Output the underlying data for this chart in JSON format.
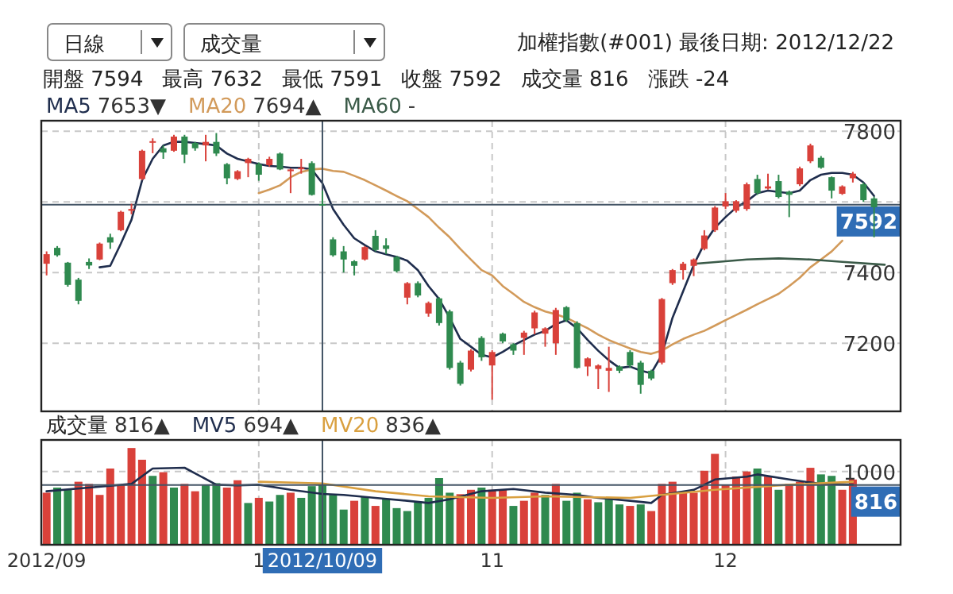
{
  "chart_data": [
    {
      "type": "candlestick",
      "title": "加權指數(#001)  最後日期: 2012/12/22",
      "categories": [
        "2012/09",
        null,
        null,
        null,
        null,
        null,
        null,
        null,
        null,
        null,
        null,
        null,
        null,
        null,
        null,
        null,
        null,
        null,
        null,
        null,
        "1",
        null,
        null,
        null,
        null,
        null,
        "2012/10/09",
        null,
        null,
        null,
        null,
        null,
        null,
        null,
        null,
        null,
        null,
        null,
        null,
        null,
        null,
        null,
        "11",
        null,
        null,
        null,
        null,
        null,
        null,
        null,
        null,
        null,
        null,
        null,
        null,
        null,
        null,
        null,
        null,
        null,
        null,
        null,
        null,
        null,
        "12",
        null,
        null,
        null,
        null,
        null,
        null,
        null,
        null,
        null,
        null,
        null,
        null,
        null,
        null,
        null
      ],
      "ohlc": [
        [
          7425,
          7460,
          7392,
          7452
        ],
        [
          7470,
          7475,
          7445,
          7449
        ],
        [
          7428,
          7430,
          7360,
          7365
        ],
        [
          7380,
          7385,
          7310,
          7320
        ],
        [
          7430,
          7440,
          7410,
          7420
        ],
        [
          7437,
          7485,
          7435,
          7482
        ],
        [
          7500,
          7510,
          7467,
          7485
        ],
        [
          7520,
          7575,
          7517,
          7572
        ],
        [
          7575,
          7595,
          7565,
          7580
        ],
        [
          7665,
          7748,
          7662,
          7745
        ],
        [
          7770,
          7780,
          7738,
          7772
        ],
        [
          7752,
          7760,
          7722,
          7740
        ],
        [
          7745,
          7790,
          7742,
          7785
        ],
        [
          7785,
          7790,
          7710,
          7734
        ],
        [
          7767,
          7770,
          7745,
          7752
        ],
        [
          7760,
          7790,
          7715,
          7770
        ],
        [
          7770,
          7795,
          7730,
          7737
        ],
        [
          7707,
          7710,
          7650,
          7667
        ],
        [
          7665,
          7690,
          7662,
          7687
        ],
        [
          7710,
          7725,
          7670,
          7722
        ],
        [
          7707,
          7712,
          7660,
          7677
        ],
        [
          7704,
          7728,
          7700,
          7722
        ],
        [
          7737,
          7740,
          7690,
          7692
        ],
        [
          7687,
          7695,
          7625,
          7692
        ],
        [
          7694,
          7722,
          7680,
          7697
        ],
        [
          7710,
          7715,
          7618,
          7620
        ],
        [
          7594,
          7632,
          7591,
          7592
        ],
        [
          7494,
          7500,
          7445,
          7449
        ],
        [
          7460,
          7475,
          7400,
          7437
        ],
        [
          7432,
          7435,
          7392,
          7419
        ],
        [
          7437,
          7475,
          7434,
          7472
        ],
        [
          7504,
          7520,
          7460,
          7464
        ],
        [
          7477,
          7497,
          7452,
          7467
        ],
        [
          7444,
          7447,
          7400,
          7404
        ],
        [
          7329,
          7373,
          7310,
          7370
        ],
        [
          7370,
          7375,
          7330,
          7335
        ],
        [
          7284,
          7318,
          7275,
          7314
        ],
        [
          7327,
          7330,
          7250,
          7257
        ],
        [
          7290,
          7295,
          7125,
          7130
        ],
        [
          7145,
          7150,
          7080,
          7085
        ],
        [
          7125,
          7183,
          7120,
          7179
        ],
        [
          7215,
          7220,
          7150,
          7160
        ],
        [
          7137,
          7180,
          7040,
          7175
        ],
        [
          7227,
          7230,
          7200,
          7205
        ],
        [
          7197,
          7200,
          7167,
          7179
        ],
        [
          7215,
          7235,
          7167,
          7230
        ],
        [
          7242,
          7292,
          7225,
          7287
        ],
        [
          7227,
          7245,
          7190,
          7242
        ],
        [
          7200,
          7300,
          7167,
          7294
        ],
        [
          7302,
          7305,
          7260,
          7265
        ],
        [
          7257,
          7262,
          7128,
          7130
        ],
        [
          7134,
          7160,
          7107,
          7157
        ],
        [
          7127,
          7140,
          7070,
          7137
        ],
        [
          7122,
          7190,
          7062,
          7130
        ],
        [
          7134,
          7137,
          7115,
          7122
        ],
        [
          7175,
          7180,
          7130,
          7137
        ],
        [
          7145,
          7150,
          7057,
          7082
        ],
        [
          7122,
          7125,
          7095,
          7100
        ],
        [
          7145,
          7328,
          7140,
          7325
        ],
        [
          7370,
          7410,
          7365,
          7407
        ],
        [
          7407,
          7430,
          7380,
          7425
        ],
        [
          7419,
          7440,
          7390,
          7437
        ],
        [
          7467,
          7520,
          7463,
          7505
        ],
        [
          7520,
          7588,
          7515,
          7584
        ],
        [
          7587,
          7625,
          7580,
          7602
        ],
        [
          7575,
          7605,
          7570,
          7602
        ],
        [
          7580,
          7655,
          7575,
          7650
        ],
        [
          7665,
          7677,
          7620,
          7625
        ],
        [
          7638,
          7680,
          7635,
          7644
        ],
        [
          7659,
          7677,
          7610,
          7614
        ],
        [
          7629,
          7632,
          7557,
          7620
        ],
        [
          7650,
          7700,
          7645,
          7695
        ],
        [
          7715,
          7765,
          7710,
          7760
        ],
        [
          7725,
          7730,
          7694,
          7697
        ],
        [
          7670,
          7672,
          7610,
          7632
        ],
        [
          7623,
          7647,
          7620,
          7644
        ],
        [
          7667,
          7685,
          7655,
          7680
        ],
        [
          7650,
          7655,
          7600,
          7605
        ],
        [
          7610,
          7615,
          7500,
          7585
        ],
        null
      ],
      "colors": [
        "#d9413a",
        "#2f8a4f",
        "#2f8a4f",
        "#2f8a4f",
        "#2f8a4f",
        "#d9413a",
        "#2f8a4f",
        "#d9413a",
        "#d9413a",
        "#d9413a",
        "#d9413a",
        "#2f8a4f",
        "#d9413a",
        "#2f8a4f",
        "#2f8a4f",
        "#d9413a",
        "#2f8a4f",
        "#2f8a4f",
        "#d9413a",
        "#d9413a",
        "#2f8a4f",
        "#d9413a",
        "#2f8a4f",
        "#d9413a",
        "#d9413a",
        "#2f8a4f",
        "#2f8a4f",
        "#2f8a4f",
        "#2f8a4f",
        "#2f8a4f",
        "#d9413a",
        "#2f8a4f",
        "#2f8a4f",
        "#2f8a4f",
        "#d9413a",
        "#2f8a4f",
        "#d9413a",
        "#2f8a4f",
        "#2f8a4f",
        "#2f8a4f",
        "#d9413a",
        "#2f8a4f",
        "#d9413a",
        "#2f8a4f",
        "#2f8a4f",
        "#d9413a",
        "#d9413a",
        "#d9413a",
        "#d9413a",
        "#2f8a4f",
        "#2f8a4f",
        "#d9413a",
        "#d9413a",
        "#d9413a",
        "#2f8a4f",
        "#2f8a4f",
        "#2f8a4f",
        "#2f8a4f",
        "#d9413a",
        "#d9413a",
        "#d9413a",
        "#d9413a",
        "#d9413a",
        "#d9413a",
        "#d9413a",
        "#d9413a",
        "#d9413a",
        "#2f8a4f",
        "#d9413a",
        "#2f8a4f",
        "#2f8a4f",
        "#d9413a",
        "#d9413a",
        "#2f8a4f",
        "#2f8a4f",
        "#d9413a",
        "#d9413a",
        "#2f8a4f",
        "#2f8a4f",
        null
      ],
      "series": [
        {
          "name": "MA5",
          "type": "line",
          "color": "#1f2d4d",
          "values": [
            null,
            null,
            null,
            null,
            null,
            7415,
            7419,
            7482,
            7550,
            7662,
            7722,
            7760,
            7770,
            7770,
            7767,
            7764,
            7760,
            7737,
            7722,
            7715,
            7707,
            7702,
            7700,
            7697,
            7697,
            7692,
            7653,
            7580,
            7535,
            7497,
            7478,
            7460,
            7452,
            7444,
            7434,
            7407,
            7362,
            7325,
            7272,
            7212,
            7190,
            7167,
            7160,
            7175,
            7194,
            7209,
            7224,
            7235,
            7254,
            7265,
            7242,
            7209,
            7179,
            7152,
            7130,
            7134,
            7122,
            7115,
            7167,
            7272,
            7347,
            7422,
            7482,
            7527,
            7557,
            7584,
            7602,
            7625,
            7632,
            7628,
            7625,
            7632,
            7662,
            7677,
            7682,
            7682,
            7677,
            7655,
            7617,
            null
          ]
        },
        {
          "name": "MA20",
          "type": "line",
          "color": "#d29a5a",
          "values": [
            null,
            null,
            null,
            null,
            null,
            null,
            null,
            null,
            null,
            null,
            null,
            null,
            null,
            null,
            null,
            null,
            null,
            null,
            null,
            null,
            7625,
            7635,
            7647,
            7670,
            7685,
            7692,
            7694,
            7688,
            7685,
            7674,
            7662,
            7647,
            7632,
            7617,
            7602,
            7580,
            7557,
            7527,
            7500,
            7467,
            7437,
            7407,
            7392,
            7362,
            7340,
            7317,
            7302,
            7290,
            7282,
            7272,
            7257,
            7242,
            7224,
            7209,
            7197,
            7185,
            7175,
            7170,
            7179,
            7197,
            7212,
            7224,
            7235,
            7250,
            7265,
            7280,
            7295,
            7310,
            7325,
            7340,
            7362,
            7385,
            7415,
            7437,
            7460,
            7490,
            null,
            null,
            null,
            null
          ]
        },
        {
          "name": "MA60",
          "type": "line",
          "color": "#3a5a48",
          "values": [
            null,
            null,
            null,
            null,
            null,
            null,
            null,
            null,
            null,
            null,
            null,
            null,
            null,
            null,
            null,
            null,
            null,
            null,
            null,
            null,
            null,
            null,
            null,
            null,
            null,
            null,
            null,
            null,
            null,
            null,
            null,
            null,
            null,
            null,
            null,
            null,
            null,
            null,
            null,
            null,
            null,
            null,
            null,
            null,
            null,
            null,
            null,
            null,
            null,
            null,
            null,
            null,
            null,
            null,
            null,
            null,
            null,
            null,
            null,
            null,
            null,
            7425,
            null,
            null,
            7432,
            null,
            7437,
            null,
            null,
            7440,
            null,
            null,
            7437,
            null,
            null,
            7430,
            null,
            null,
            null,
            7422
          ]
        }
      ],
      "ylim": [
        7007,
        7830
      ],
      "yticks": [
        7200,
        7400,
        {
          "value": 7600,
          "label": null
        },
        7800
      ],
      "grid": true,
      "tick_labels": "y",
      "legend": "top left",
      "ref_lines": [
        {
          "axis": "y",
          "value": 7592,
          "label": "7592",
          "color": "#445566"
        },
        {
          "axis": "x",
          "value": "2012/10/09",
          "color": "#445566"
        }
      ],
      "annotations": [
        "日線",
        "成交量",
        "開盤 7594",
        "最高 7632",
        "最低 7591",
        "收盤 7592",
        "成交量 816",
        "漲跌 -24",
        "7653▼",
        "7694▲",
        "-"
      ]
    },
    {
      "type": "bar",
      "categories": [
        "2012/09",
        null,
        null,
        null,
        null,
        null,
        null,
        null,
        null,
        null,
        null,
        null,
        null,
        null,
        null,
        null,
        null,
        null,
        null,
        null,
        "1",
        null,
        null,
        null,
        null,
        null,
        "2012/10/09",
        null,
        null,
        null,
        null,
        null,
        null,
        null,
        null,
        null,
        null,
        null,
        null,
        null,
        null,
        null,
        "11",
        null,
        null,
        null,
        null,
        null,
        null,
        null,
        null,
        null,
        null,
        null,
        null,
        null,
        null,
        null,
        null,
        null,
        null,
        null,
        null,
        null,
        "12",
        null,
        null,
        null,
        null,
        null,
        null,
        null,
        null,
        null,
        null,
        null,
        null,
        null,
        null,
        null
      ],
      "series": [
        {
          "name": "成交量",
          "values": [
            710,
            780,
            750,
            860,
            830,
            680,
            1040,
            820,
            1320,
            1160,
            940,
            990,
            780,
            830,
            730,
            820,
            840,
            780,
            880,
            570,
            640,
            590,
            680,
            710,
            640,
            800,
            816,
            680,
            480,
            600,
            660,
            530,
            620,
            500,
            460,
            580,
            640,
            910,
            710,
            690,
            750,
            780,
            750,
            750,
            530,
            600,
            710,
            680,
            830,
            600,
            710,
            620,
            580,
            650,
            550,
            530,
            550,
            460,
            830,
            860,
            710,
            710,
            1010,
            1240,
            820,
            930,
            1000,
            1040,
            930,
            750,
            830,
            860,
            1050,
            960,
            940,
            750,
            890,
            null,
            null,
            null
          ],
          "colors": [
            "#d9413a",
            "#2f8a4f",
            "#2f8a4f",
            "#d9413a",
            "#d9413a",
            "#d9413a",
            "#d9413a",
            "#d9413a",
            "#d9413a",
            "#d9413a",
            "#2f8a4f",
            "#d9413a",
            "#2f8a4f",
            "#d9413a",
            "#d9413a",
            "#2f8a4f",
            "#2f8a4f",
            "#d9413a",
            "#d9413a",
            "#2f8a4f",
            "#d9413a",
            "#2f8a4f",
            "#2f8a4f",
            "#d9413a",
            "#2f8a4f",
            "#2f8a4f",
            "#2f8a4f",
            "#2f8a4f",
            "#2f8a4f",
            "#d9413a",
            "#2f8a4f",
            "#d9413a",
            "#2f8a4f",
            "#2f8a4f",
            "#2f8a4f",
            "#2f8a4f",
            "#2f8a4f",
            "#2f8a4f",
            "#2f8a4f",
            "#d9413a",
            "#d9413a",
            "#2f8a4f",
            "#d9413a",
            "#d9413a",
            "#2f8a4f",
            "#d9413a",
            "#d9413a",
            "#2f8a4f",
            "#d9413a",
            "#2f8a4f",
            "#2f8a4f",
            "#d9413a",
            "#2f8a4f",
            "#2f8a4f",
            "#2f8a4f",
            "#d9413a",
            "#2f8a4f",
            "#d9413a",
            "#d9413a",
            "#d9413a",
            "#d9413a",
            "#d9413a",
            "#d9413a",
            "#d9413a",
            "#d9413a",
            "#d9413a",
            "#d9413a",
            "#2f8a4f",
            "#d9413a",
            "#2f8a4f",
            "#d9413a",
            "#d9413a",
            "#d9413a",
            "#2f8a4f",
            "#2f8a4f",
            "#d9413a",
            "#d9413a",
            null,
            null,
            null
          ]
        },
        {
          "name": "MV5",
          "type": "line",
          "color": "#1f2d4d",
          "values": [
            730,
            null,
            null,
            null,
            780,
            null,
            null,
            null,
            830,
            null,
            1040,
            null,
            null,
            1050,
            null,
            null,
            820,
            null,
            810,
            null,
            820,
            null,
            null,
            750,
            null,
            null,
            694,
            null,
            680,
            null,
            null,
            640,
            null,
            null,
            600,
            null,
            570,
            null,
            620,
            null,
            null,
            730,
            null,
            null,
            760,
            null,
            null,
            710,
            null,
            null,
            680,
            null,
            640,
            null,
            null,
            600,
            null,
            570,
            680,
            null,
            null,
            750,
            null,
            890,
            null,
            null,
            930,
            960,
            null,
            null,
            890,
            null,
            null,
            830,
            null,
            null,
            820,
            null,
            null,
            null
          ]
        },
        {
          "name": "MV20",
          "type": "line",
          "color": "#d9a040",
          "values": [
            null,
            null,
            null,
            null,
            null,
            null,
            null,
            null,
            null,
            null,
            null,
            null,
            null,
            null,
            null,
            null,
            null,
            null,
            null,
            null,
            860,
            null,
            null,
            null,
            null,
            null,
            836,
            null,
            null,
            null,
            null,
            730,
            null,
            null,
            null,
            null,
            660,
            null,
            null,
            null,
            null,
            null,
            640,
            null,
            null,
            null,
            null,
            660,
            null,
            null,
            null,
            null,
            null,
            null,
            null,
            640,
            null,
            null,
            null,
            null,
            null,
            null,
            null,
            750,
            null,
            null,
            null,
            null,
            null,
            null,
            820,
            null,
            null,
            null,
            null,
            null,
            860,
            null,
            null,
            null
          ]
        }
      ],
      "ylim": [
        0,
        1430
      ],
      "yticks": [
        1000
      ],
      "grid": true,
      "legend": "top left",
      "ref_lines": [
        {
          "axis": "y",
          "value": 816,
          "label": "816",
          "color": "#445566"
        },
        {
          "axis": "x",
          "value": "2012/10/09",
          "color": "#445566"
        }
      ],
      "annotations": [
        "816▲",
        "694▲",
        "836▲"
      ]
    }
  ]
}
